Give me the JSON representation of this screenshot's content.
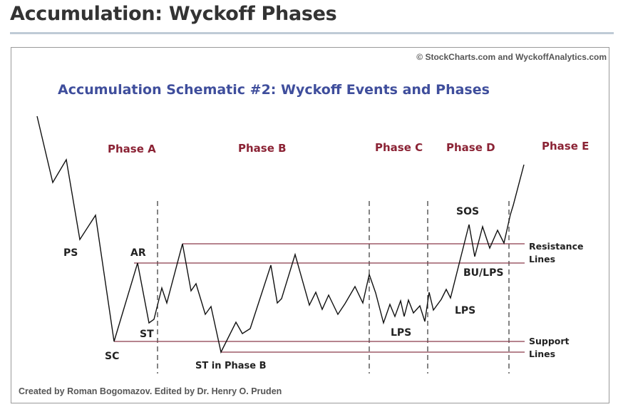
{
  "page": {
    "heading": "Accumulation: Wyckoff Phases"
  },
  "figure": {
    "copyright": "© StockCharts.com and WyckoffAnalytics.com",
    "title": "Accumulation Schematic #2: Wyckoff Events and Phases",
    "credit": "Created by Roman Bogomazov. Edited by Dr. Henry O. Pruden",
    "phases": [
      "Phase A",
      "Phase B",
      "Phase C",
      "Phase D",
      "Phase E"
    ],
    "events": {
      "ps": "PS",
      "sc": "SC",
      "ar": "AR",
      "st": "ST",
      "st_phase_b": "ST in Phase B",
      "lps_c": "LPS",
      "lps_d": "LPS",
      "sos": "SOS",
      "bu_lps": "BU/LPS"
    },
    "line_labels": {
      "resistance": [
        "Resistance",
        "Lines"
      ],
      "support": [
        "Support",
        "Lines"
      ]
    },
    "colors": {
      "title": "#3f4e9c",
      "phase_labels": "#8b2335",
      "horizontal_lines": "#8a3a4a",
      "price_path": "#111111"
    }
  }
}
